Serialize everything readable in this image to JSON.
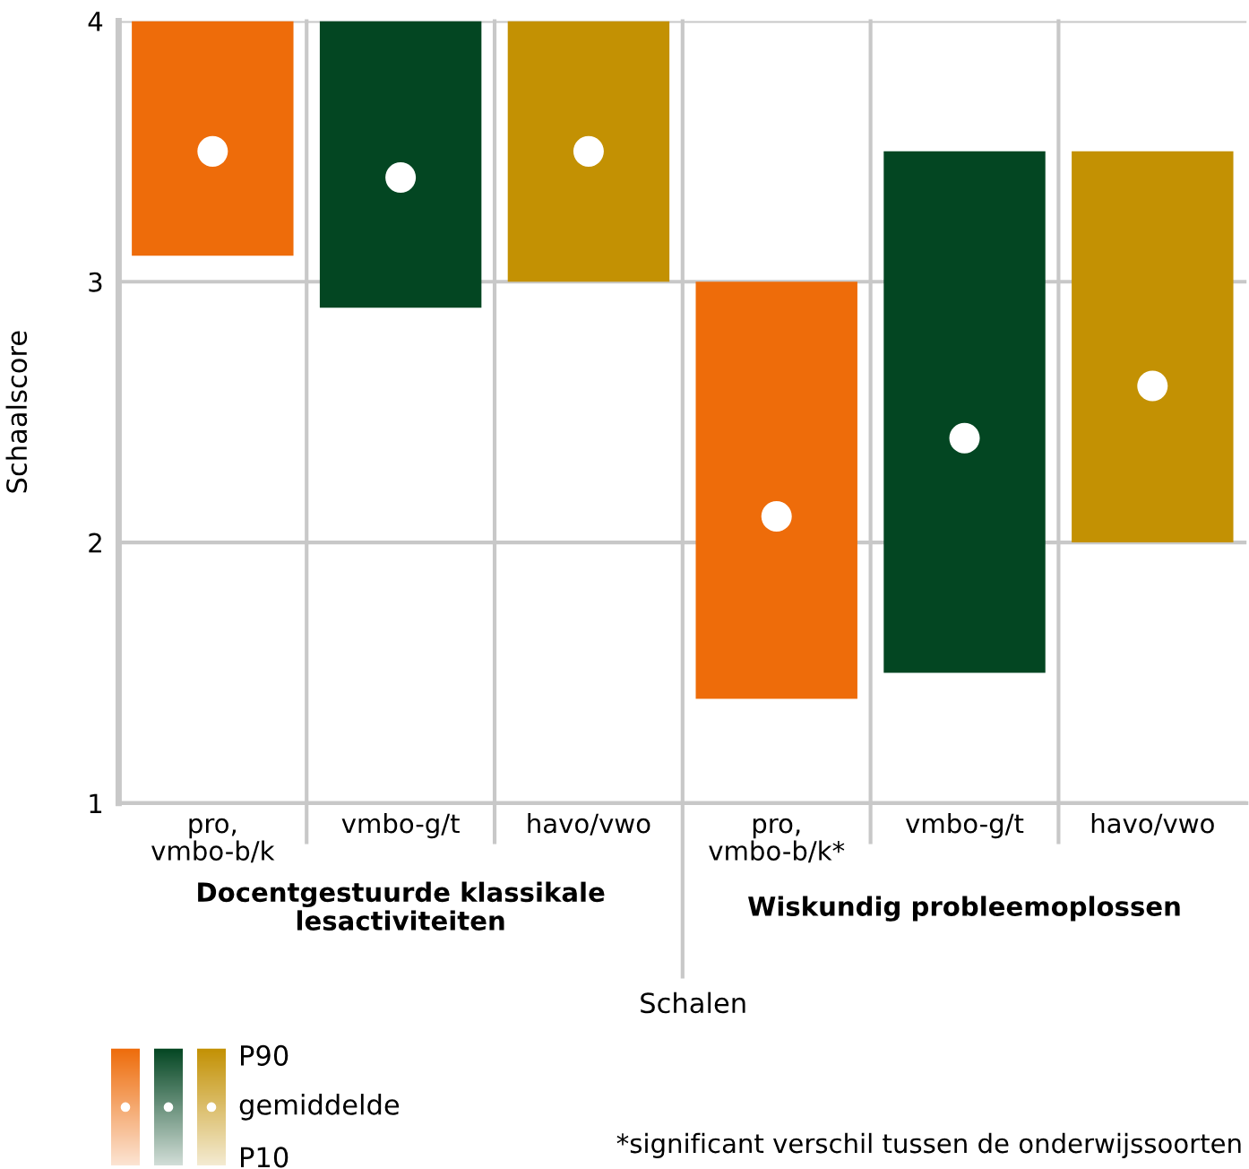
{
  "chart_data": {
    "type": "bar",
    "ylabel": "Schaalscore",
    "xlabel": "Schalen",
    "categories": [
      "pro,\nvmbo-b/k",
      "vmbo-g/t",
      "havo/vwo",
      "pro,\nvmbo-b/k*",
      "vmbo-g/t",
      "havo/vwo"
    ],
    "series": [
      {
        "color": "#ee6c0a",
        "values": [
          0.9,
          null,
          null,
          1.6,
          null,
          null
        ],
        "base": [
          3.1,
          null,
          null,
          1.4,
          null,
          null
        ]
      },
      {
        "color": "#034622",
        "values": [
          null,
          1.1,
          null,
          null,
          2.0,
          null
        ],
        "base": [
          null,
          2.9,
          null,
          null,
          1.5,
          null
        ]
      },
      {
        "color": "#c39103",
        "values": [
          null,
          null,
          1.0,
          null,
          null,
          1.5
        ],
        "base": [
          null,
          null,
          3.0,
          null,
          null,
          2.0
        ]
      },
      {
        "type": "scatter",
        "color": "#ffffff",
        "marker": "circle",
        "values": [
          3.5,
          3.4,
          3.5,
          2.1,
          2.4,
          2.6
        ]
      }
    ],
    "ylim": [
      1,
      4
    ],
    "yticks": [
      1,
      2,
      3,
      4
    ],
    "grid": "y",
    "legend": false,
    "annotations": [
      "Docentgestuurde klassikale\nlesactiviteiten",
      "Wiskundig probleemoplossen",
      "*significant verschil tussen de onderwijssoorten",
      "P90",
      "gemiddelde",
      "P10"
    ]
  }
}
